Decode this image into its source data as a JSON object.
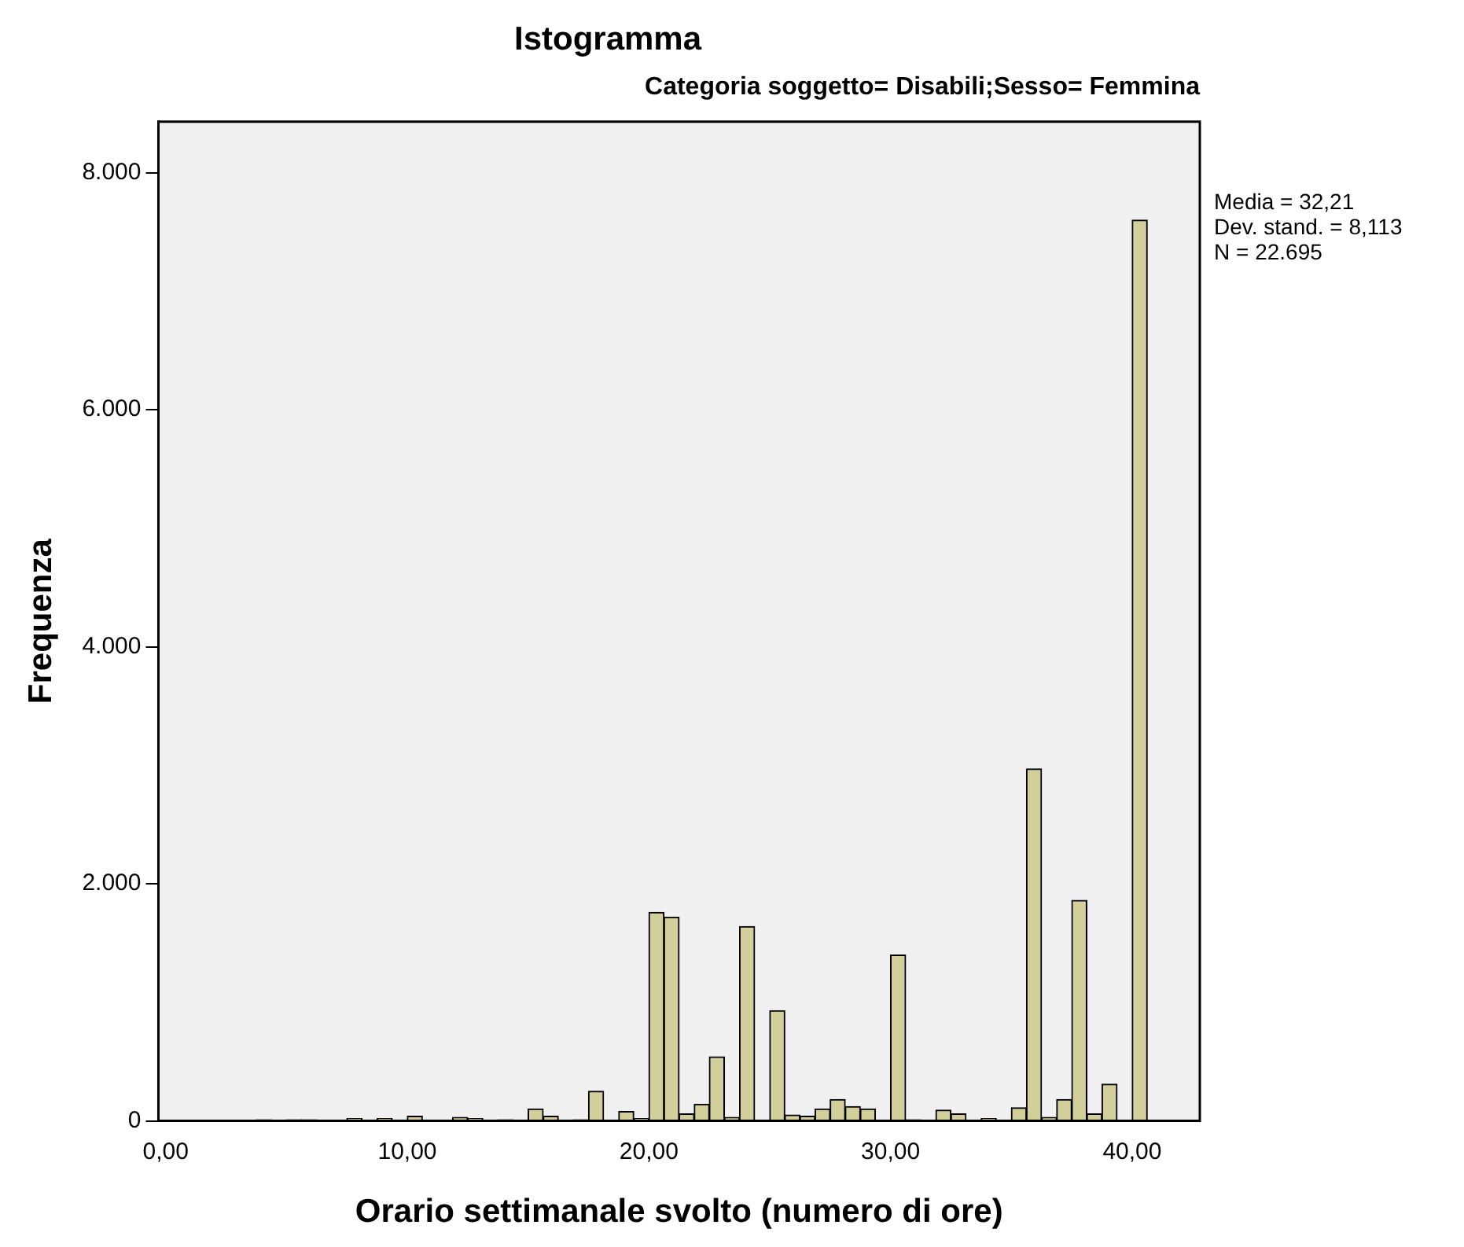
{
  "chart_data": {
    "type": "histogram",
    "title": "Istogramma",
    "subtitle": "Categoria soggetto= Disabili;Sesso= Femmina",
    "xlabel": "Orario settimanale svolto (numero di ore)",
    "ylabel": "Frequenza",
    "bins": [
      0,
      0.625,
      1.25,
      1.875,
      2.5,
      3.125,
      3.75,
      4.375,
      5,
      5.625,
      6.25,
      6.875,
      7.5,
      8.125,
      8.75,
      9.375,
      10,
      10.625,
      11.25,
      11.875,
      12.5,
      13.125,
      13.75,
      14.375,
      15,
      15.625,
      16.25,
      16.875,
      17.5,
      18.125,
      18.75,
      19.375,
      20,
      20.625,
      21.25,
      21.875,
      22.5,
      23.125,
      23.75,
      24.375,
      25,
      25.625,
      26.25,
      26.875,
      27.5,
      28.125,
      28.75,
      29.375,
      30,
      30.625,
      31.25,
      31.875,
      32.5,
      33.125,
      33.75,
      34.375,
      35,
      35.625,
      36.25,
      36.875,
      37.5,
      38.125,
      38.75,
      39.375,
      40,
      40.625
    ],
    "values": [
      0,
      0,
      0,
      0,
      0,
      0,
      10,
      0,
      10,
      10,
      0,
      0,
      20,
      0,
      20,
      0,
      40,
      0,
      0,
      30,
      20,
      0,
      10,
      0,
      100,
      40,
      0,
      10,
      250,
      0,
      80,
      20,
      1760,
      1720,
      60,
      140,
      540,
      30,
      1640,
      0,
      930,
      50,
      40,
      100,
      180,
      120,
      100,
      0,
      1400,
      10,
      0,
      90,
      60,
      0,
      20,
      0,
      110,
      2970,
      30,
      180,
      1860,
      60,
      310,
      0,
      7600
    ],
    "color": "#d3cf9b",
    "xlim": [
      -0.3,
      42.8
    ],
    "ylim": [
      0,
      8430
    ],
    "xticks": [
      {
        "value": 0,
        "label": "0,00"
      },
      {
        "value": 10,
        "label": "10,00"
      },
      {
        "value": 20,
        "label": "20,00"
      },
      {
        "value": 30,
        "label": "30,00"
      },
      {
        "value": 40,
        "label": "40,00"
      }
    ],
    "yticks": [
      0,
      {
        "value": 2000,
        "label": "2.000"
      },
      {
        "value": 4000,
        "label": "4.000"
      },
      {
        "value": 6000,
        "label": "6.000"
      },
      {
        "value": 8000,
        "label": "8.000"
      }
    ],
    "annotations": [
      "Media = 32,21",
      "Dev. stand. = 8,113",
      "N = 22.695"
    ],
    "grid": false,
    "legend": false
  }
}
